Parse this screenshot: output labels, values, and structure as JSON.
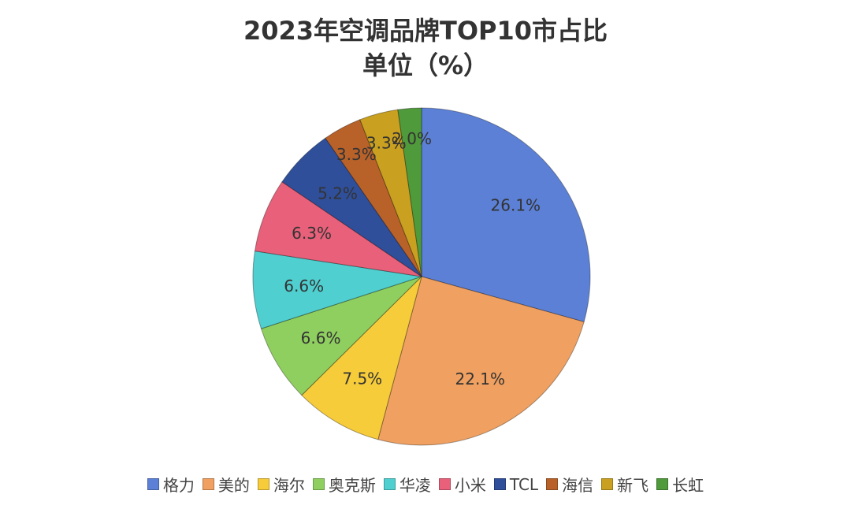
{
  "chart_data": {
    "type": "pie",
    "title": "2023年空调品牌TOP10市占比",
    "subtitle": "单位（%）",
    "categories": [
      "格力",
      "美的",
      "海尔",
      "奥克斯",
      "华凌",
      "小米",
      "TCL",
      "海信",
      "新飞",
      "长虹"
    ],
    "values": [
      26.1,
      22.1,
      7.5,
      6.6,
      6.6,
      6.3,
      5.2,
      3.3,
      3.3,
      2.0
    ],
    "data_labels": [
      "26.1%",
      "22.1%",
      "7.5%",
      "6.6%",
      "6.6%",
      "6.3%",
      "5.2%",
      "3.3%",
      "3.3%",
      "2.0%"
    ],
    "colors": [
      "#5b80d6",
      "#f0a060",
      "#f7cc3a",
      "#8fcf5f",
      "#4fcfcf",
      "#e8607a",
      "#2f4f9a",
      "#b8622a",
      "#c9a020",
      "#4f9a3a"
    ],
    "legend_position": "bottom",
    "start": "top, clockwise"
  }
}
